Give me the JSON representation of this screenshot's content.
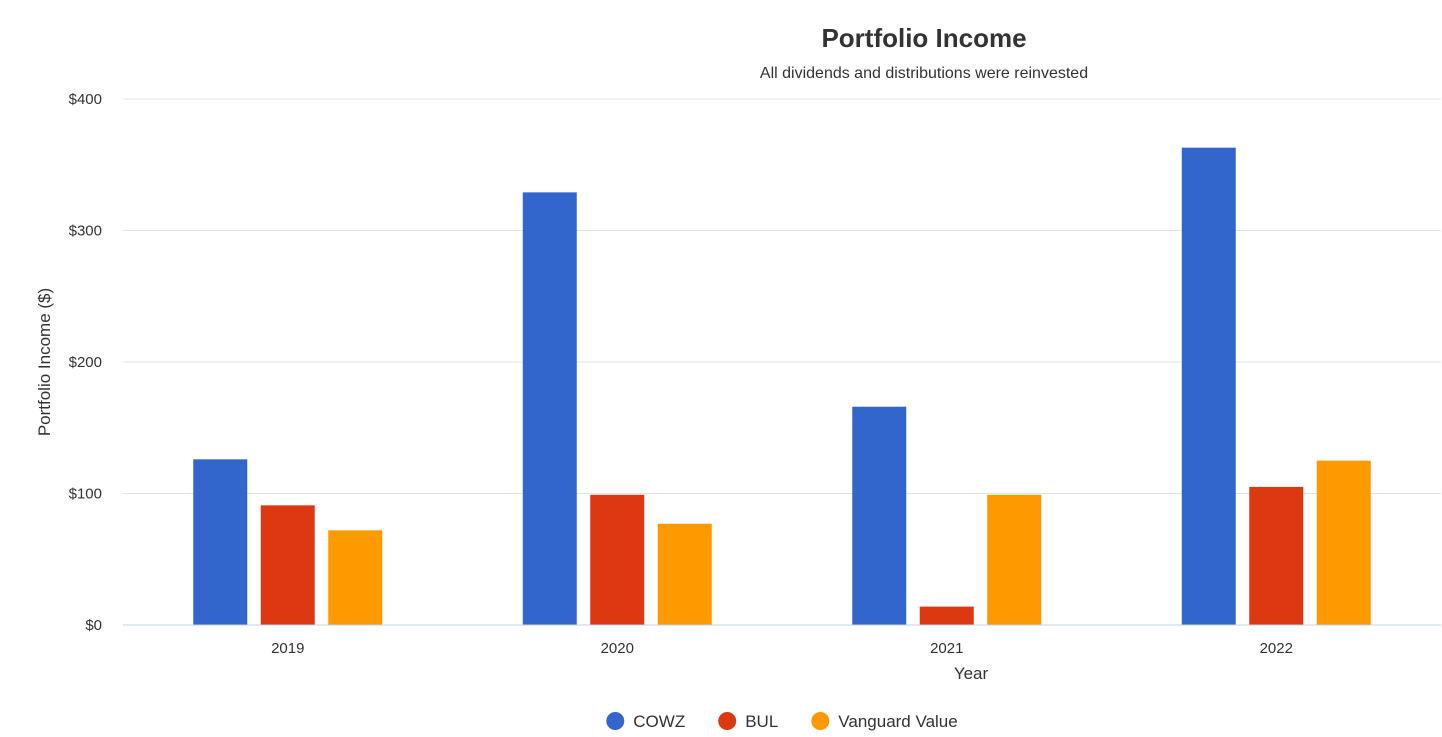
{
  "chart_data": {
    "type": "bar",
    "title": "Portfolio Income",
    "subtitle": "All dividends and distributions were reinvested",
    "xlabel": "Year",
    "ylabel": "Portfolio Income ($)",
    "categories": [
      "2019",
      "2020",
      "2021",
      "2022"
    ],
    "ylim": [
      0,
      400
    ],
    "yticks": [
      0,
      100,
      200,
      300,
      400
    ],
    "ytick_labels": [
      "$0",
      "$100",
      "$200",
      "$300",
      "$400"
    ],
    "grid": true,
    "legend_position": "bottom-center",
    "series": [
      {
        "name": "COWZ",
        "color": "#3366cc",
        "values": [
          126,
          329,
          166,
          363
        ]
      },
      {
        "name": "BUL",
        "color": "#dc3912",
        "values": [
          91,
          99,
          14,
          105
        ]
      },
      {
        "name": "Vanguard Value",
        "color": "#ff9900",
        "values": [
          72,
          77,
          99,
          125
        ]
      }
    ]
  }
}
